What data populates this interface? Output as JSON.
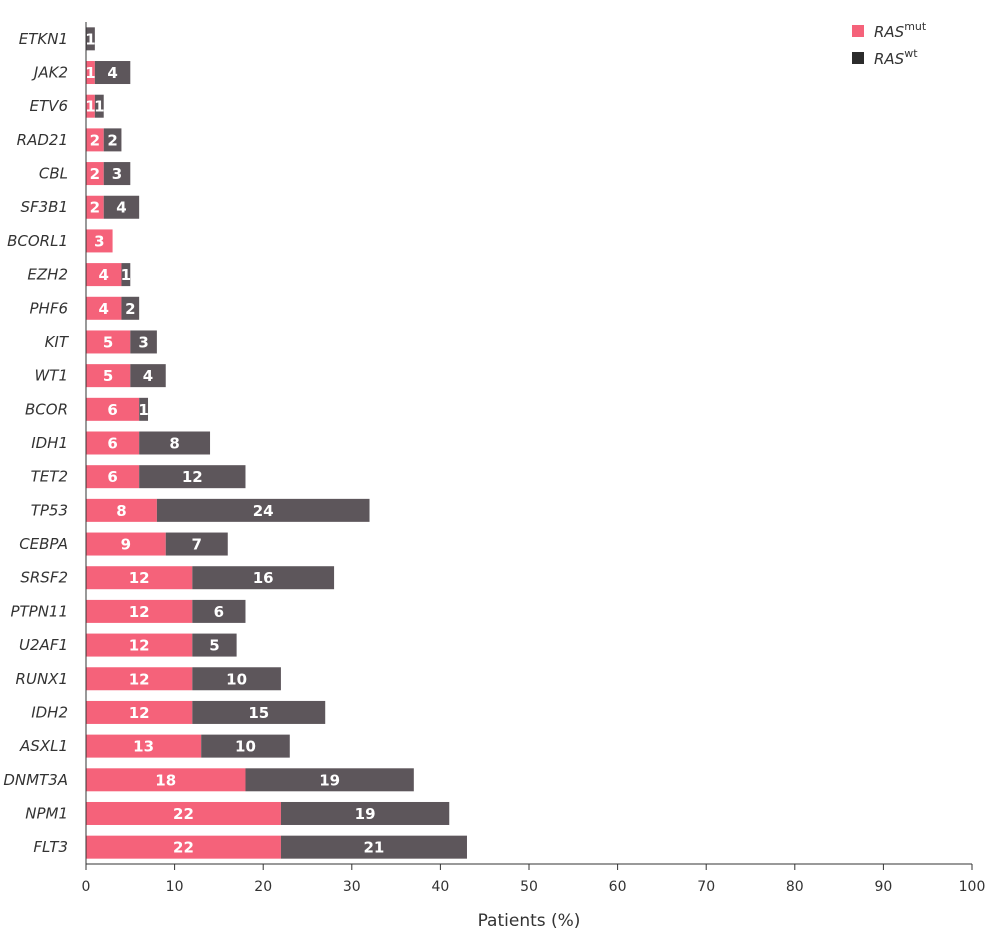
{
  "chart_data": {
    "type": "bar",
    "orientation": "horizontal",
    "stacked": true,
    "title": "",
    "xlabel": "Patients (%)",
    "ylabel": "",
    "xlim": [
      0,
      100
    ],
    "xticks": [
      0,
      10,
      20,
      30,
      40,
      50,
      60,
      70,
      80,
      90,
      100
    ],
    "grid": false,
    "legend_position": "top-right",
    "categories": [
      "ETKN1",
      "JAK2",
      "ETV6",
      "RAD21",
      "CBL",
      "SF3B1",
      "BCORL1",
      "EZH2",
      "PHF6",
      "KIT",
      "WT1",
      "BCOR",
      "IDH1",
      "TET2",
      "TP53",
      "CEBPA",
      "SRSF2",
      "PTPN11",
      "U2AF1",
      "RUNX1",
      "IDH2",
      "ASXL1",
      "DNMT3A",
      "NPM1",
      "FLT3"
    ],
    "series": [
      {
        "name": "RAS",
        "superscript": "mut",
        "color": "#f5627a",
        "values": [
          0,
          1,
          1,
          2,
          2,
          2,
          3,
          4,
          4,
          5,
          5,
          6,
          6,
          6,
          8,
          9,
          12,
          12,
          12,
          12,
          12,
          13,
          18,
          22,
          22
        ]
      },
      {
        "name": "RAS",
        "superscript": "wt",
        "color": "#5d565b",
        "values": [
          1,
          4,
          1,
          2,
          3,
          4,
          0,
          1,
          2,
          3,
          4,
          1,
          8,
          12,
          24,
          7,
          16,
          6,
          5,
          10,
          15,
          10,
          19,
          19,
          21
        ]
      }
    ]
  },
  "legend_swatch_colors": {
    "mut": "#f5627a",
    "wt": "#2b2b2b"
  }
}
